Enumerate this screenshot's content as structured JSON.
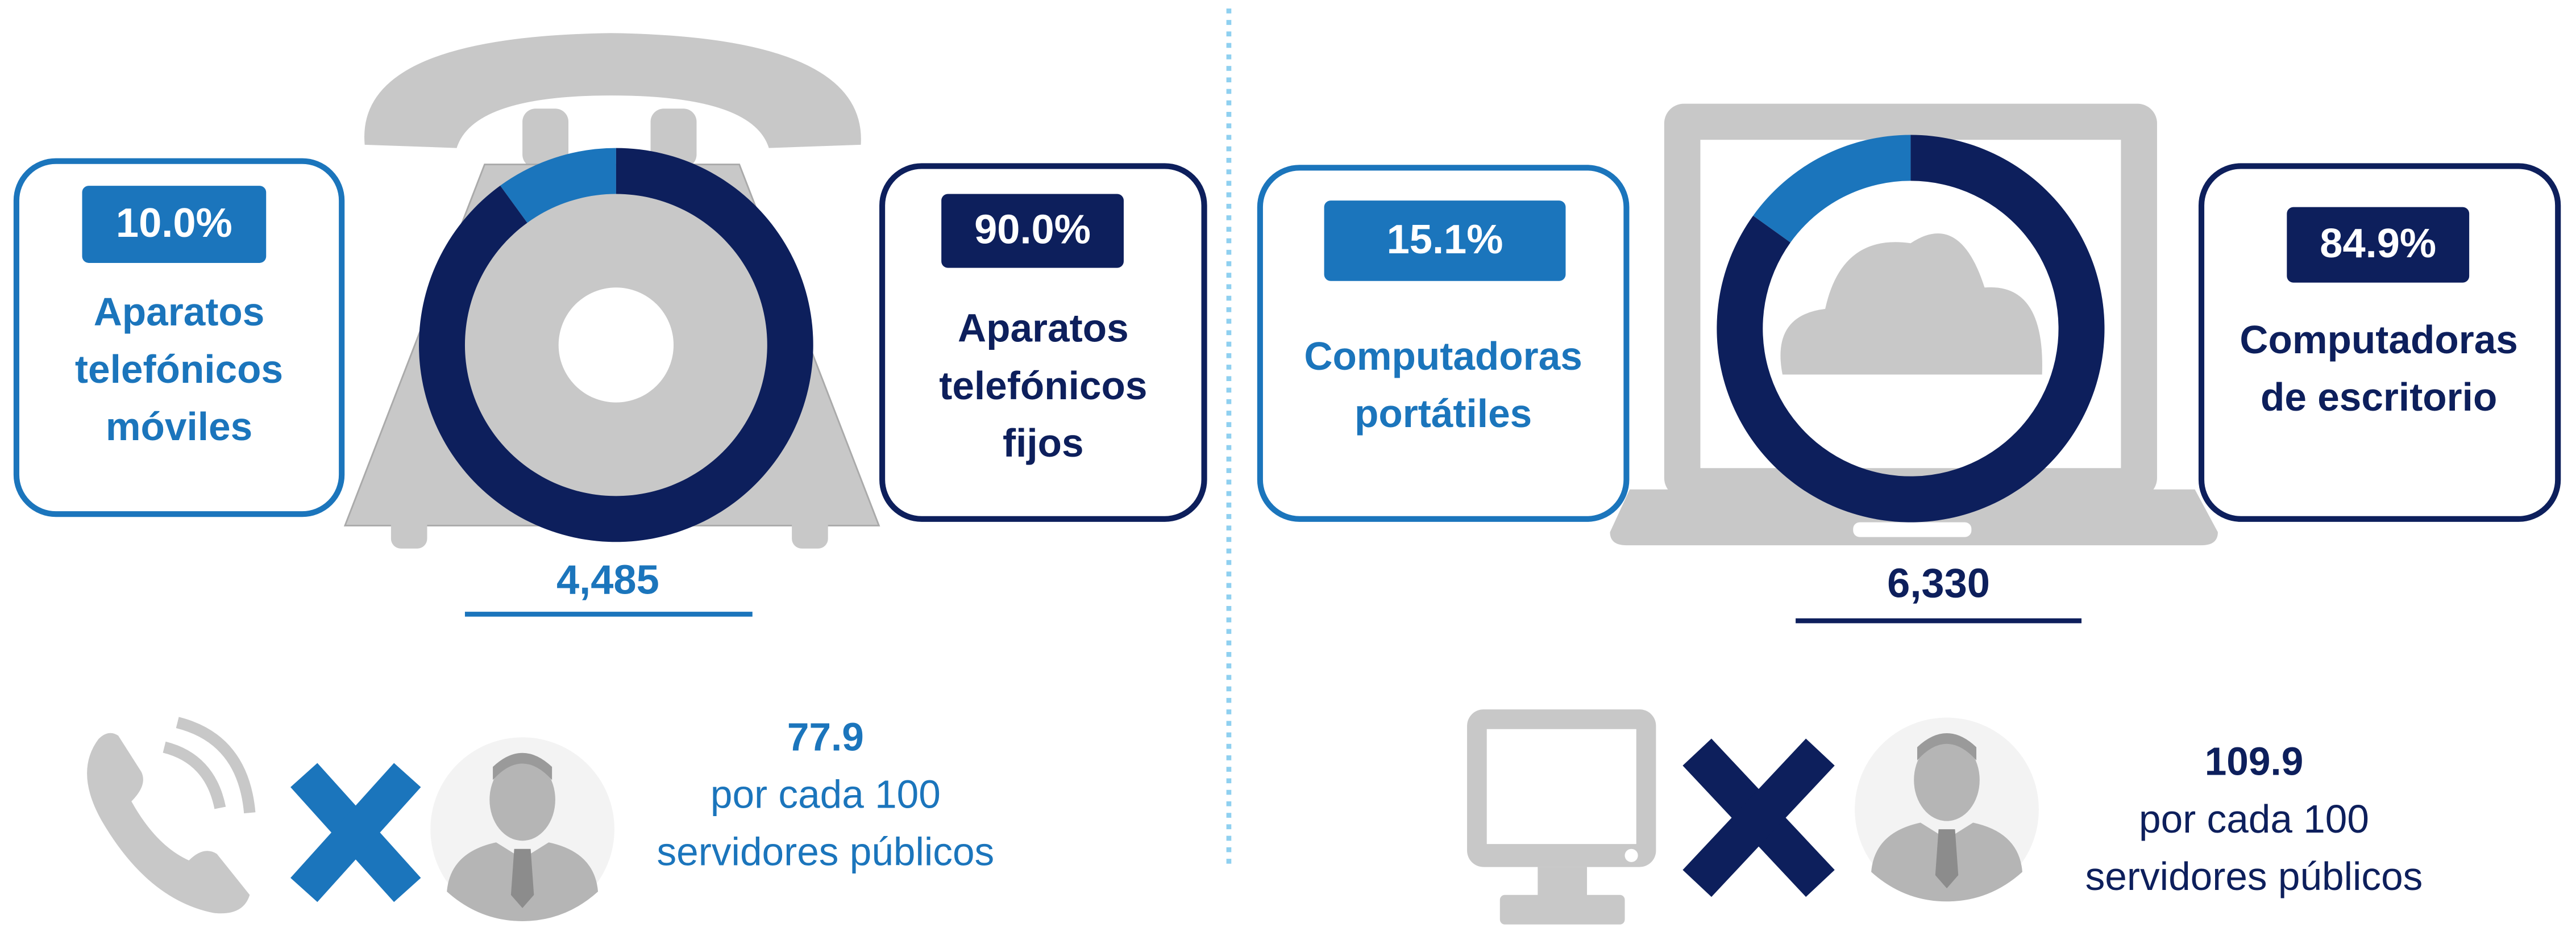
{
  "chart_data": [
    {
      "type": "donut",
      "categories": [
        "Aparatos telefónicos móviles",
        "Aparatos telefónicos fijos"
      ],
      "values": [
        10.0,
        90.0
      ],
      "value_labels": [
        "10.0%",
        "90.0%"
      ],
      "colors": [
        "#1b75bc",
        "#0d1f5c"
      ],
      "total": {
        "value": 4485,
        "label": "4,485"
      },
      "ratio": 77.9,
      "ratio_text": "por cada 100 servidores públicos",
      "accent": "#1b75bc"
    },
    {
      "type": "donut",
      "categories": [
        "Computadoras portátiles",
        "Computadoras de escritorio"
      ],
      "values": [
        15.1,
        84.9
      ],
      "value_labels": [
        "15.1%",
        "84.9%"
      ],
      "colors": [
        "#1b75bc",
        "#0d1f5c"
      ],
      "total": {
        "value": 6330,
        "label": "6,330"
      },
      "ratio": 109.9,
      "ratio_text": "por cada 100 servidores públicos",
      "accent": "#0d1f5c"
    }
  ]
}
